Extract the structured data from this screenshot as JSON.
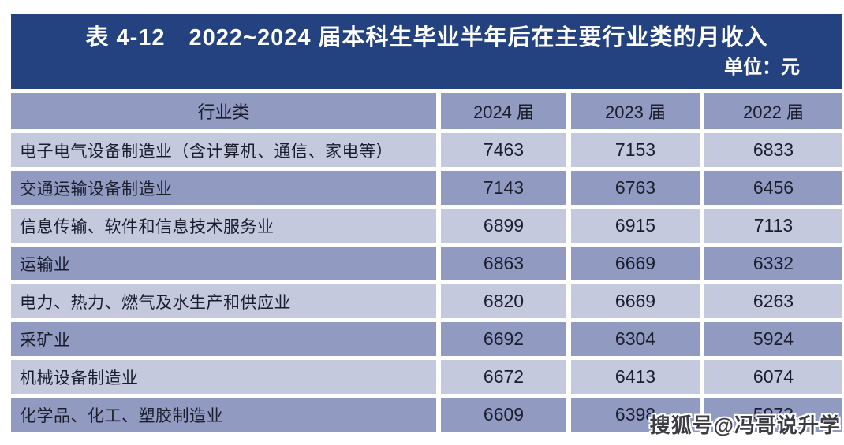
{
  "chart_data": {
    "type": "table",
    "title": "表 4-12　2022~2024 届本科生毕业半年后在主要行业类的月收入",
    "unit_label": "单位：元",
    "columns": [
      "行业类",
      "2024 届",
      "2023 届",
      "2022 届"
    ],
    "rows": [
      {
        "industry": "电子电气设备制造业（含计算机、通信、家电等）",
        "values": [
          7463,
          7153,
          6833
        ]
      },
      {
        "industry": "交通运输设备制造业",
        "values": [
          7143,
          6763,
          6456
        ]
      },
      {
        "industry": "信息传输、软件和信息技术服务业",
        "values": [
          6899,
          6915,
          7113
        ]
      },
      {
        "industry": "运输业",
        "values": [
          6863,
          6669,
          6332
        ]
      },
      {
        "industry": "电力、热力、燃气及水生产和供应业",
        "values": [
          6820,
          6669,
          6263
        ]
      },
      {
        "industry": "采矿业",
        "values": [
          6692,
          6304,
          5924
        ]
      },
      {
        "industry": "机械设备制造业",
        "values": [
          6672,
          6413,
          6074
        ]
      },
      {
        "industry": "化学品、化工、塑胶制造业",
        "values": [
          6609,
          6398,
          5973
        ]
      }
    ]
  },
  "watermark": "搜狐号@冯哥说升学",
  "colors": {
    "title_bar": "#24427f",
    "row_dark": "#919ac0",
    "row_light": "#c5c9de",
    "cell_text": "#1a1d2c",
    "page_bg": "#ffffff"
  }
}
